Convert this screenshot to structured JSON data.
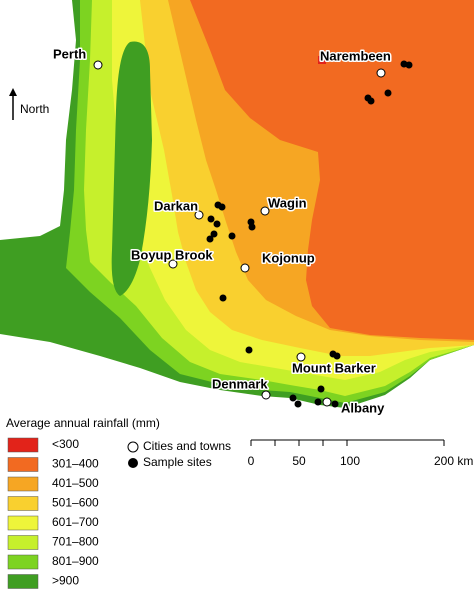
{
  "map": {
    "north_label": "North",
    "cities": [
      "Perth",
      "Narembeen",
      "Darkan",
      "Wagin",
      "Boyup Brook",
      "Kojonup",
      "Mount Barker",
      "Denmark",
      "Albany"
    ],
    "legend": {
      "title": "Average annual rainfall (mm)",
      "items": [
        "<300",
        "301–400",
        "401–500",
        "501–600",
        "601–700",
        "701–800",
        "801–900",
        ">900"
      ],
      "symbols": [
        "Cities and towns",
        "Sample sites"
      ]
    },
    "scale_bar": {
      "labels": [
        "0",
        "50",
        "100",
        "200 km"
      ]
    }
  }
}
